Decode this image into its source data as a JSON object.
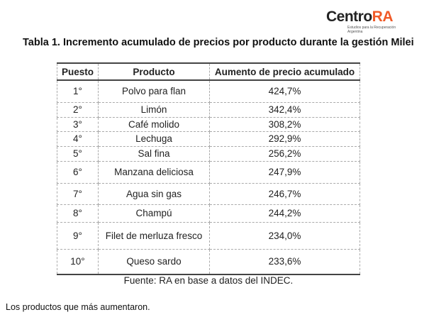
{
  "logo": {
    "main": "Centro",
    "accent": "RA",
    "sub": "Estudios para la Recuperación Argentina"
  },
  "title": "Tabla 1. Incremento acumulado de precios por producto durante la gestión Milei",
  "table": {
    "headers": [
      "Puesto",
      "Producto",
      "Aumento de precio acumulado"
    ],
    "rows": [
      [
        "1°",
        "Polvo para flan",
        "424,7%"
      ],
      [
        "2°",
        "Limón",
        "342,4%"
      ],
      [
        "3°",
        "Café molido",
        "308,2%"
      ],
      [
        "4°",
        "Lechuga",
        "292,9%"
      ],
      [
        "5°",
        "Sal fina",
        "256,2%"
      ],
      [
        "6°",
        "Manzana deliciosa",
        "247,9%"
      ],
      [
        "7°",
        "Agua sin gas",
        "246,7%"
      ],
      [
        "8°",
        "Champú",
        "244,2%"
      ],
      [
        "9°",
        "Filet de merluza fresco",
        "234,0%"
      ],
      [
        "10°",
        "Queso sardo",
        "233,6%"
      ]
    ]
  },
  "source": "Fuente: RA en base a datos del INDEC.",
  "caption": "Los productos que más aumentaron."
}
